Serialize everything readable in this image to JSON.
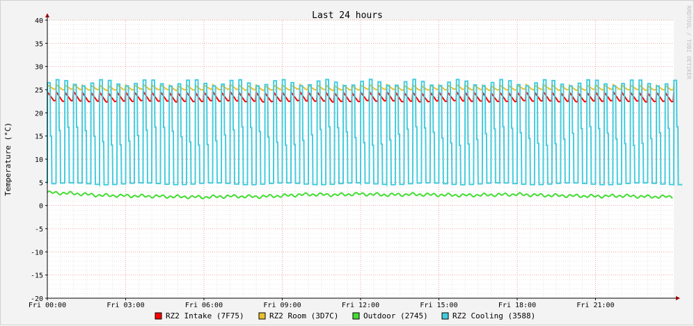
{
  "watermark": "RRDTOOL / TOBI OETIKER",
  "chart_data": {
    "type": "line",
    "title": "Last 24 hours",
    "ylabel": "Temperature (°C)",
    "xlabel": "",
    "ylim": [
      -20,
      40
    ],
    "yticks": [
      -20,
      -15,
      -10,
      -5,
      0,
      5,
      10,
      15,
      20,
      25,
      30,
      35,
      40
    ],
    "x_range_hours": [
      0,
      24
    ],
    "xticks": [
      {
        "hour": 0,
        "label": "Fri 00:00"
      },
      {
        "hour": 3,
        "label": "Fri 03:00"
      },
      {
        "hour": 6,
        "label": "Fri 06:00"
      },
      {
        "hour": 9,
        "label": "Fri 09:00"
      },
      {
        "hour": 12,
        "label": "Fri 12:00"
      },
      {
        "hour": 15,
        "label": "Fri 15:00"
      },
      {
        "hour": 18,
        "label": "Fri 18:00"
      },
      {
        "hour": 21,
        "label": "Fri 21:00"
      }
    ],
    "grid": true,
    "legend": "bottom",
    "cycle_hours": 0.3333,
    "series": [
      {
        "name": "RZ2 Intake (7F75)",
        "color": "#ff0000",
        "min": 22.5,
        "max": 24.5,
        "pattern": "sawtooth"
      },
      {
        "name": "RZ2 Room (3D7C)",
        "color": "#e8c030",
        "min": 25.0,
        "max": 26.0,
        "pattern": "sawtooth"
      },
      {
        "name": "Outdoor (2745)",
        "color": "#44dd33",
        "min": 1.2,
        "max": 3.4,
        "pattern": "noise",
        "points": [
          [
            0,
            2.8
          ],
          [
            1,
            2.6
          ],
          [
            2,
            2.2
          ],
          [
            3,
            2.1
          ],
          [
            4,
            2.0
          ],
          [
            5,
            1.9
          ],
          [
            6,
            1.8
          ],
          [
            7,
            2.0
          ],
          [
            8,
            1.9
          ],
          [
            9,
            2.1
          ],
          [
            10,
            2.4
          ],
          [
            11,
            2.3
          ],
          [
            12,
            2.5
          ],
          [
            13,
            2.3
          ],
          [
            14,
            2.4
          ],
          [
            15,
            2.3
          ],
          [
            16,
            2.2
          ],
          [
            17,
            2.3
          ],
          [
            18,
            2.4
          ],
          [
            19,
            2.2
          ],
          [
            20,
            2.1
          ],
          [
            21,
            2.0
          ],
          [
            22,
            2.1
          ],
          [
            23,
            1.9
          ],
          [
            24,
            1.9
          ]
        ]
      },
      {
        "name": "RZ2 Cooling (3588)",
        "color": "#44ccdd",
        "min": 4.5,
        "max": 27.0,
        "pattern": "pulse"
      }
    ]
  }
}
